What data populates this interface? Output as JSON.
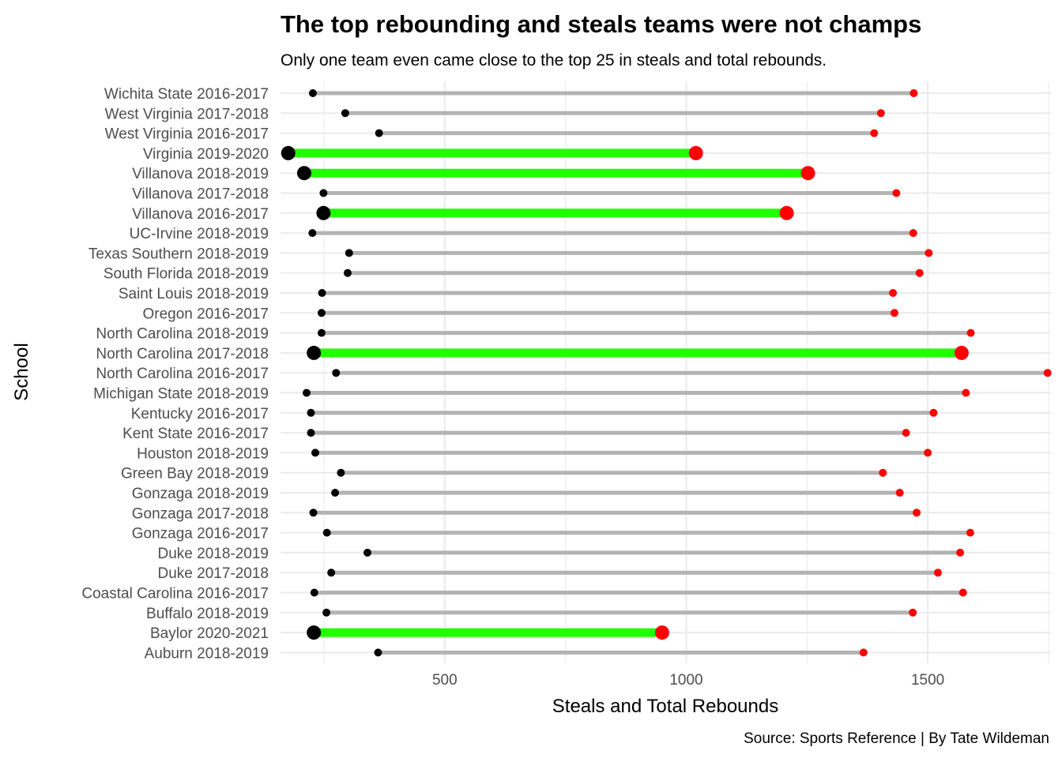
{
  "chart_data": {
    "type": "dumbbell",
    "title": "The top rebounding and steals teams were not champs",
    "subtitle": "Only one team even came close to the top 25 in steals and total rebounds.",
    "xlabel": "Steals and Total Rebounds",
    "ylabel": "School",
    "caption": "Source: Sports Reference | By Tate Wildeman",
    "xlim": [
      160,
      1755
    ],
    "xticks": [
      500,
      1000,
      1500
    ],
    "grid": true,
    "colors": {
      "steals": "#000000",
      "rebounds": "#ff0000",
      "segment": "#b3b3b3",
      "champion_segment": "#22ff00"
    },
    "categories": [
      "Wichita State 2016-2017",
      "West Virginia 2017-2018",
      "West Virginia 2016-2017",
      "Virginia 2019-2020",
      "Villanova 2018-2019",
      "Villanova 2017-2018",
      "Villanova 2016-2017",
      "UC-Irvine 2018-2019",
      "Texas Southern 2018-2019",
      "South Florida 2018-2019",
      "Saint Louis 2018-2019",
      "Oregon 2016-2017",
      "North Carolina 2018-2019",
      "North Carolina 2017-2018",
      "North Carolina 2016-2017",
      "Michigan State 2018-2019",
      "Kentucky 2016-2017",
      "Kent State 2016-2017",
      "Houston 2018-2019",
      "Green Bay 2018-2019",
      "Gonzaga 2018-2019",
      "Gonzaga 2017-2018",
      "Gonzaga 2016-2017",
      "Duke 2018-2019",
      "Duke 2017-2018",
      "Coastal Carolina 2016-2017",
      "Buffalo 2018-2019",
      "Baylor 2020-2021",
      "Auburn 2018-2019"
    ],
    "steals": [
      227,
      294,
      364,
      176,
      209,
      249,
      249,
      226,
      302,
      299,
      246,
      245,
      245,
      229,
      275,
      214,
      223,
      223,
      232,
      285,
      273,
      228,
      256,
      340,
      265,
      230,
      255,
      229,
      362
    ],
    "rebounds": [
      1471,
      1403,
      1389,
      1020,
      1252,
      1435,
      1208,
      1470,
      1502,
      1483,
      1428,
      1431,
      1589,
      1570,
      1748,
      1579,
      1512,
      1455,
      1500,
      1407,
      1442,
      1477,
      1588,
      1567,
      1521,
      1573,
      1469,
      950,
      1367
    ],
    "champion": [
      false,
      false,
      false,
      true,
      true,
      false,
      true,
      false,
      false,
      false,
      false,
      false,
      false,
      true,
      false,
      false,
      false,
      false,
      false,
      false,
      false,
      false,
      false,
      false,
      false,
      false,
      false,
      true,
      false
    ]
  }
}
